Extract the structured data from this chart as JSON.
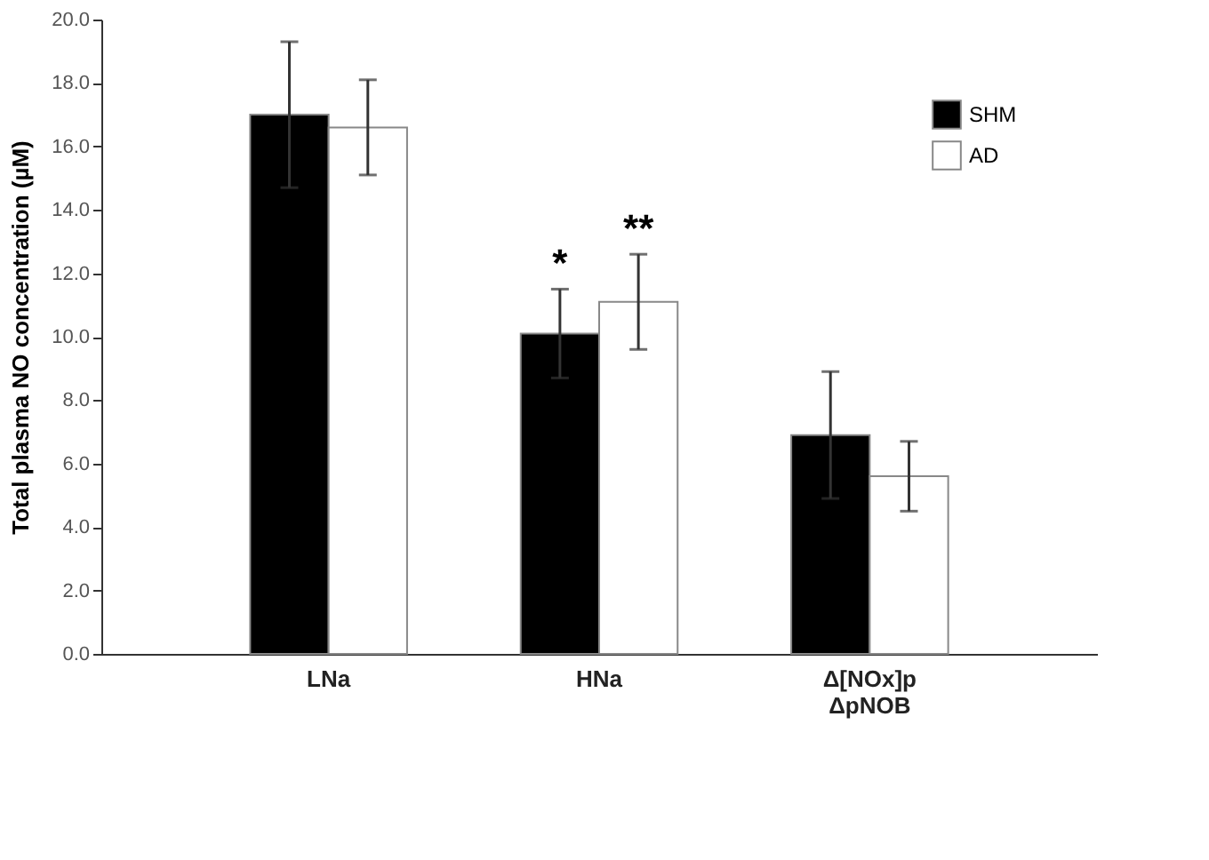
{
  "chart_data": {
    "type": "bar",
    "ylabel": "Total plasma NO concentration (µM)",
    "categories": [
      "LNa",
      "HNa",
      "Δ[NOx]p\nΔpNOB"
    ],
    "series": [
      {
        "name": "SHM",
        "color": "#000000",
        "values": [
          17.0,
          10.1,
          6.9
        ],
        "errors": [
          2.3,
          1.4,
          2.0
        ]
      },
      {
        "name": "AD",
        "color": "#ffffff",
        "values": [
          16.6,
          11.1,
          5.6
        ],
        "errors": [
          1.5,
          1.5,
          1.1
        ]
      }
    ],
    "ylim": [
      0,
      20
    ],
    "yticks": [
      {
        "value": 0,
        "label": "0.0"
      },
      {
        "value": 2,
        "label": "2.0"
      },
      {
        "value": 4,
        "label": "4.0"
      },
      {
        "value": 6,
        "label": "6.0"
      },
      {
        "value": 8,
        "label": "8.0"
      },
      {
        "value": 10,
        "label": "10.0"
      },
      {
        "value": 12,
        "label": "12.0"
      },
      {
        "value": 14,
        "label": "14.0"
      },
      {
        "value": 16,
        "label": "16.0"
      },
      {
        "value": 18,
        "label": "18.0"
      },
      {
        "value": 20,
        "label": "20.0"
      }
    ],
    "annotations": [
      "*",
      "**"
    ],
    "legend": "top right",
    "grid": false
  }
}
